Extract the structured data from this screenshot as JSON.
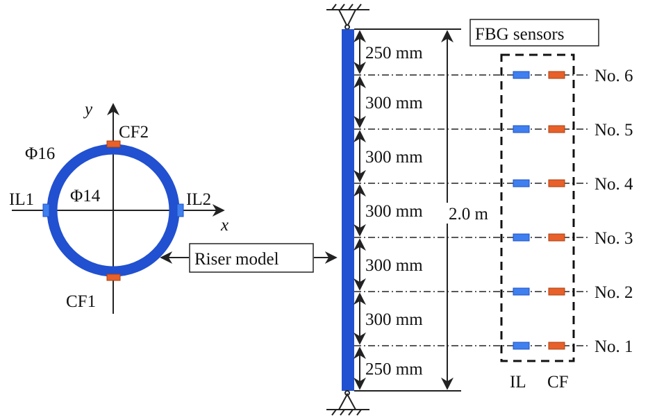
{
  "cross_section": {
    "axis_x": "x",
    "axis_y": "y",
    "outer_diameter": "Φ16",
    "inner_diameter": "Φ14",
    "sensors": {
      "cf2": "CF2",
      "cf1": "CF1",
      "il1": "IL1",
      "il2": "IL2"
    }
  },
  "riser_label": "Riser model",
  "fbg_label": "FBG sensors",
  "total_length": "2.0 m",
  "segments": [
    "250 mm",
    "300 mm",
    "300 mm",
    "300 mm",
    "300 mm",
    "300 mm",
    "250 mm"
  ],
  "sensor_rows": [
    "No. 6",
    "No. 5",
    "No. 4",
    "No. 3",
    "No. 2",
    "No. 1"
  ],
  "columns": {
    "il": "IL",
    "cf": "CF"
  },
  "colors": {
    "riser": "#2150d0",
    "il": "#3f7ff0",
    "cf": "#e8602a"
  }
}
